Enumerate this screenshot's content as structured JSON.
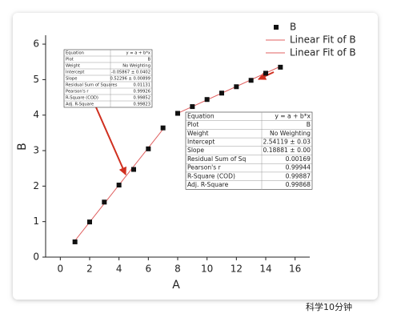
{
  "chart_data": {
    "type": "scatter",
    "xlabel": "A",
    "ylabel": "B",
    "xlim": [
      -1,
      17
    ],
    "xticks": [
      0,
      2,
      4,
      6,
      8,
      10,
      12,
      14,
      16
    ],
    "ylim": [
      0,
      6.25
    ],
    "yticks": [
      0,
      1,
      2,
      3,
      4,
      5,
      6
    ],
    "legend": "top-right",
    "series": [
      {
        "name": "B",
        "color": "#111111",
        "kind": "scatter",
        "x": [
          1,
          2,
          3,
          4,
          5,
          6,
          7,
          8,
          9,
          10,
          11,
          12,
          13,
          14,
          15
        ],
        "values": [
          0.43,
          0.99,
          1.55,
          2.03,
          2.47,
          3.05,
          3.64,
          4.05,
          4.24,
          4.44,
          4.62,
          4.8,
          4.98,
          5.18,
          5.35
        ]
      },
      {
        "name": "Linear Fit of B",
        "color": "#e06060",
        "kind": "line",
        "x": [
          1,
          7
        ],
        "values": [
          0.464,
          3.602
        ]
      },
      {
        "name": "Linear Fit of B",
        "color": "#e06060",
        "kind": "line",
        "x": [
          8,
          15
        ],
        "values": [
          4.052,
          5.373
        ]
      }
    ],
    "fit_tables": [
      {
        "rows": [
          [
            "Equation",
            "y = a + b*x"
          ],
          [
            "Plot",
            "B"
          ],
          [
            "Weight",
            "No Weighting"
          ],
          [
            "Intercept",
            "-0.05867 ± 0.0402"
          ],
          [
            "Slope",
            "0.52296 ± 0.00899"
          ],
          [
            "Residual Sum of Squares",
            "0.01131"
          ],
          [
            "Pearson's r",
            "0.99926"
          ],
          [
            "R-Square (COD)",
            "0.99852"
          ],
          [
            "Adj. R-Square",
            "0.99823"
          ]
        ]
      },
      {
        "rows": [
          [
            "Equation",
            "y = a + b*x"
          ],
          [
            "Plot",
            "B"
          ],
          [
            "Weight",
            "No Weighting"
          ],
          [
            "Intercept",
            "2.54119 ± 0.03"
          ],
          [
            "Slope",
            "0.18881 ± 0.00"
          ],
          [
            "Residual Sum of Sq",
            "0.00169"
          ],
          [
            "Pearson's r",
            "0.99944"
          ],
          [
            "R-Square (COD)",
            "0.99887"
          ],
          [
            "Adj. R-Square",
            "0.99868"
          ]
        ]
      }
    ],
    "watermark": "科学10分钟"
  }
}
